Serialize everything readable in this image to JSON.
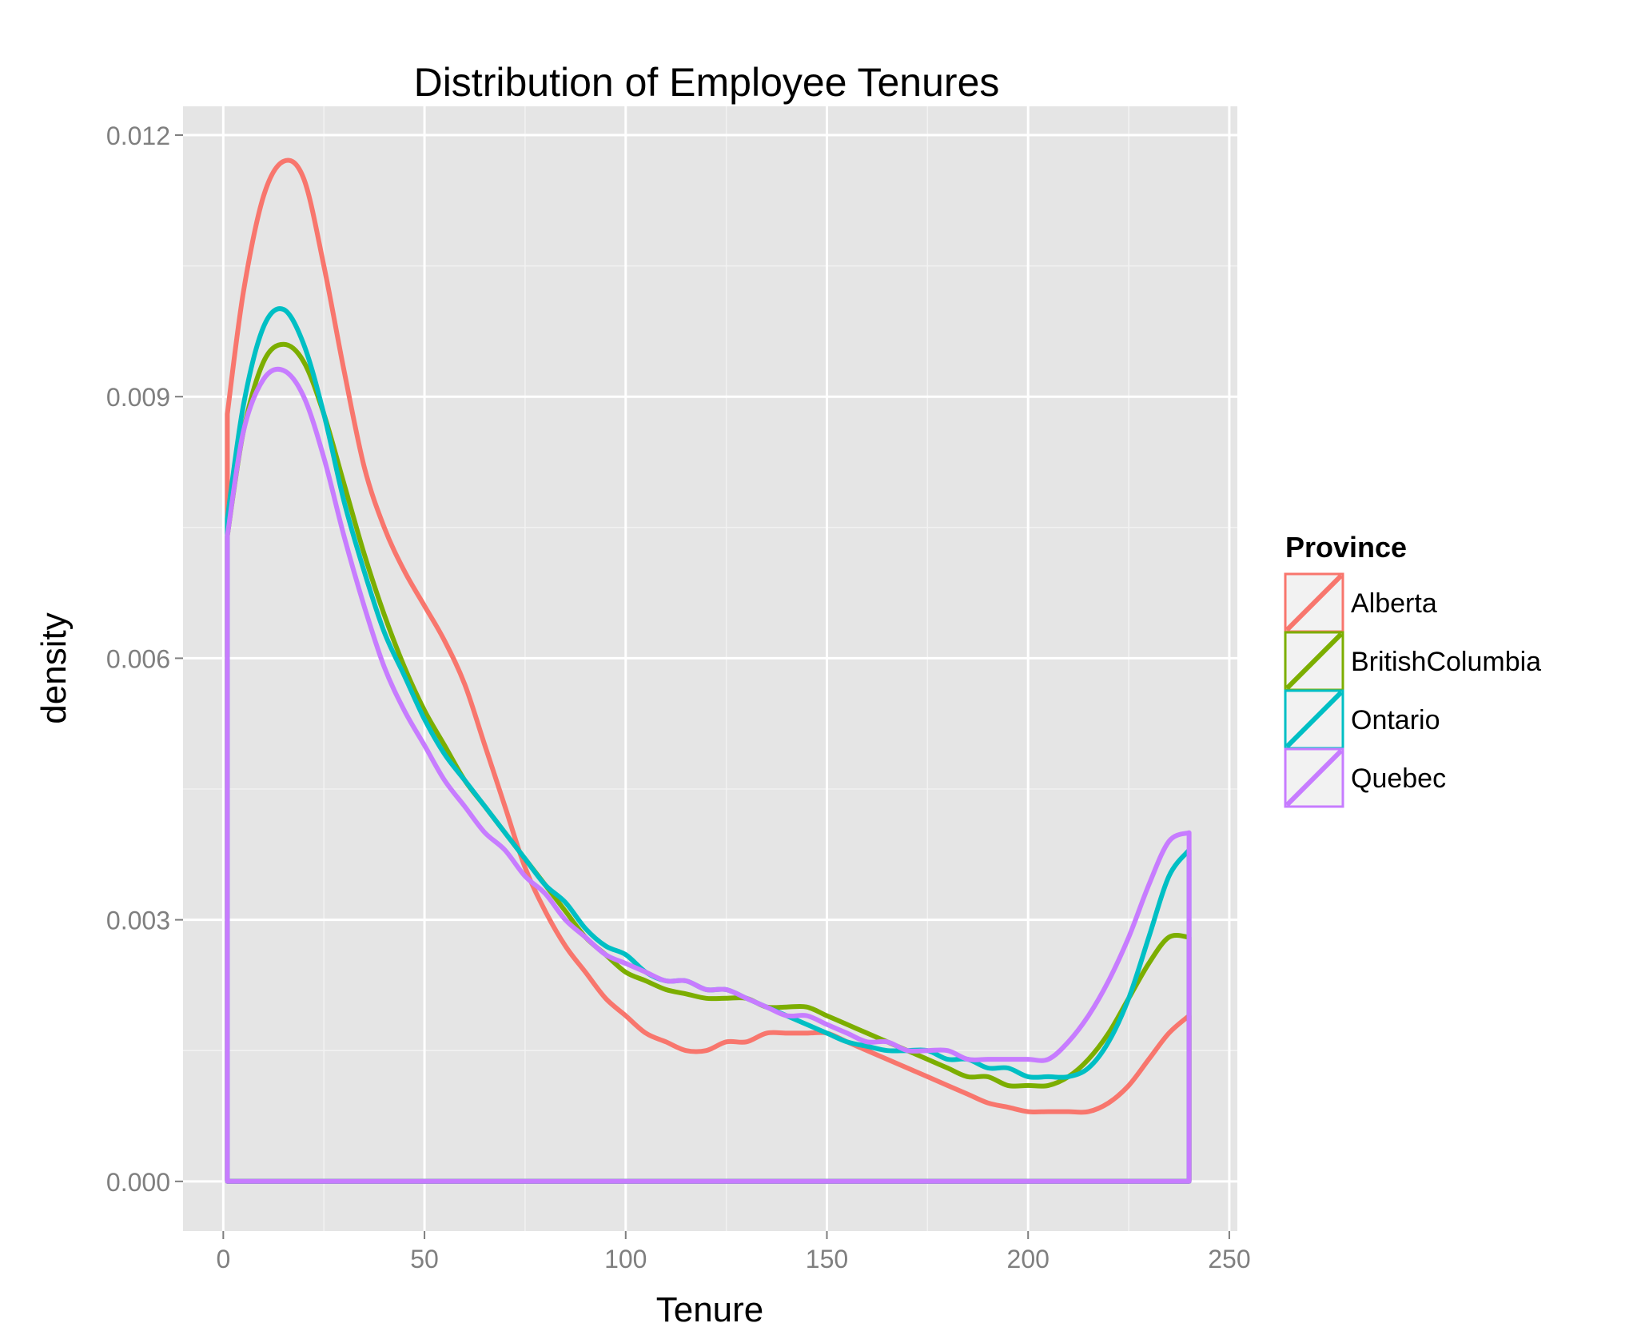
{
  "chart_data": {
    "type": "area",
    "title": "Distribution of Employee Tenures",
    "xlabel": "Tenure",
    "ylabel": "density",
    "xlim": [
      -10,
      252
    ],
    "ylim": [
      -0.00057,
      0.01233
    ],
    "x_ticks": [
      0,
      50,
      100,
      150,
      200,
      250
    ],
    "x_tick_labels": [
      "0",
      "50",
      "100",
      "150",
      "200",
      "250"
    ],
    "y_ticks": [
      0,
      0.003,
      0.006,
      0.009,
      0.012
    ],
    "y_tick_labels": [
      "0.000",
      "0.003",
      "0.006",
      "0.009",
      "0.012"
    ],
    "grid": true,
    "legend": {
      "title": "Province",
      "placement": "right"
    },
    "density_range": [
      1,
      240
    ],
    "series": [
      {
        "name": "Alberta",
        "color": "#F8766D",
        "x": [
          1,
          5,
          10,
          15,
          20,
          25,
          30,
          35,
          40,
          45,
          50,
          55,
          60,
          65,
          70,
          75,
          80,
          85,
          90,
          95,
          100,
          105,
          110,
          115,
          120,
          125,
          130,
          135,
          140,
          145,
          150,
          155,
          160,
          165,
          170,
          175,
          180,
          185,
          190,
          195,
          200,
          205,
          210,
          215,
          220,
          225,
          230,
          235,
          240
        ],
        "y": [
          0.0088,
          0.0102,
          0.0113,
          0.0117,
          0.0115,
          0.0105,
          0.0093,
          0.0082,
          0.0075,
          0.007,
          0.0066,
          0.0062,
          0.0057,
          0.005,
          0.0043,
          0.0036,
          0.0031,
          0.0027,
          0.0024,
          0.0021,
          0.0019,
          0.0017,
          0.0016,
          0.0015,
          0.0015,
          0.0016,
          0.0016,
          0.0017,
          0.0017,
          0.0017,
          0.0017,
          0.0016,
          0.0015,
          0.0014,
          0.0013,
          0.0012,
          0.0011,
          0.001,
          0.0009,
          0.00085,
          0.0008,
          0.0008,
          0.0008,
          0.0008,
          0.0009,
          0.0011,
          0.0014,
          0.0017,
          0.0019
        ]
      },
      {
        "name": "BritishColumbia",
        "color": "#7CAE00",
        "x": [
          1,
          5,
          10,
          15,
          20,
          25,
          30,
          35,
          40,
          45,
          50,
          55,
          60,
          65,
          70,
          75,
          80,
          85,
          90,
          95,
          100,
          105,
          110,
          115,
          120,
          125,
          130,
          135,
          140,
          145,
          150,
          155,
          160,
          165,
          170,
          175,
          180,
          185,
          190,
          195,
          200,
          205,
          210,
          215,
          220,
          225,
          230,
          235,
          240
        ],
        "y": [
          0.0074,
          0.0086,
          0.0094,
          0.0096,
          0.0094,
          0.0088,
          0.008,
          0.0072,
          0.0065,
          0.0059,
          0.0054,
          0.005,
          0.0046,
          0.0043,
          0.004,
          0.0037,
          0.0034,
          0.0031,
          0.0028,
          0.0026,
          0.0024,
          0.0023,
          0.0022,
          0.00215,
          0.0021,
          0.0021,
          0.0021,
          0.002,
          0.002,
          0.002,
          0.0019,
          0.0018,
          0.0017,
          0.0016,
          0.0015,
          0.0014,
          0.0013,
          0.0012,
          0.0012,
          0.0011,
          0.0011,
          0.0011,
          0.0012,
          0.0014,
          0.0017,
          0.0021,
          0.0025,
          0.0028,
          0.0028
        ]
      },
      {
        "name": "Ontario",
        "color": "#00BFC4",
        "x": [
          1,
          5,
          10,
          15,
          20,
          25,
          30,
          35,
          40,
          45,
          50,
          55,
          60,
          65,
          70,
          75,
          80,
          85,
          90,
          95,
          100,
          105,
          110,
          115,
          120,
          125,
          130,
          135,
          140,
          145,
          150,
          155,
          160,
          165,
          170,
          175,
          180,
          185,
          190,
          195,
          200,
          205,
          210,
          215,
          220,
          225,
          230,
          235,
          240
        ],
        "y": [
          0.0076,
          0.0089,
          0.0098,
          0.01,
          0.0096,
          0.0088,
          0.0078,
          0.007,
          0.0063,
          0.0058,
          0.0053,
          0.0049,
          0.0046,
          0.0043,
          0.004,
          0.0037,
          0.0034,
          0.0032,
          0.0029,
          0.0027,
          0.0026,
          0.0024,
          0.0023,
          0.0023,
          0.0022,
          0.0022,
          0.0021,
          0.002,
          0.0019,
          0.0018,
          0.0017,
          0.0016,
          0.00155,
          0.0015,
          0.0015,
          0.0015,
          0.0014,
          0.0014,
          0.0013,
          0.0013,
          0.0012,
          0.0012,
          0.0012,
          0.0013,
          0.0016,
          0.0021,
          0.0028,
          0.0035,
          0.0038
        ]
      },
      {
        "name": "Quebec",
        "color": "#C77CFF",
        "x": [
          1,
          5,
          10,
          15,
          20,
          25,
          30,
          35,
          40,
          45,
          50,
          55,
          60,
          65,
          70,
          75,
          80,
          85,
          90,
          95,
          100,
          105,
          110,
          115,
          120,
          125,
          130,
          135,
          140,
          145,
          150,
          155,
          160,
          165,
          170,
          175,
          180,
          185,
          190,
          195,
          200,
          205,
          210,
          215,
          220,
          225,
          230,
          235,
          240
        ],
        "y": [
          0.0074,
          0.0086,
          0.0092,
          0.0093,
          0.009,
          0.0083,
          0.0074,
          0.0066,
          0.0059,
          0.0054,
          0.005,
          0.0046,
          0.0043,
          0.004,
          0.0038,
          0.0035,
          0.0033,
          0.003,
          0.0028,
          0.0026,
          0.0025,
          0.0024,
          0.0023,
          0.0023,
          0.0022,
          0.0022,
          0.0021,
          0.002,
          0.0019,
          0.0019,
          0.0018,
          0.0017,
          0.0016,
          0.0016,
          0.0015,
          0.0015,
          0.0015,
          0.0014,
          0.0014,
          0.0014,
          0.0014,
          0.0014,
          0.0016,
          0.0019,
          0.0023,
          0.0028,
          0.0034,
          0.0039,
          0.004
        ]
      }
    ]
  }
}
